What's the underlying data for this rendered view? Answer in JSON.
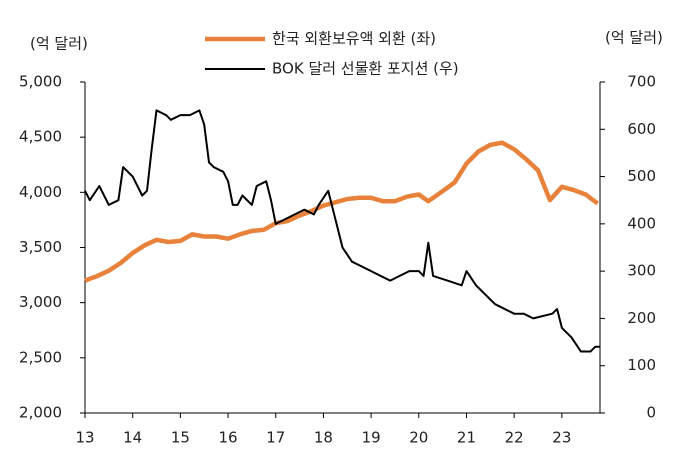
{
  "chart_data": {
    "type": "line",
    "y_label": "(억 달러)",
    "y2_label": "(억 달러)",
    "xlim": [
      13,
      23.8
    ],
    "xticks": [
      13,
      14,
      15,
      16,
      17,
      18,
      19,
      20,
      21,
      22,
      23
    ],
    "ylim": [
      2000,
      5000
    ],
    "yticks": [
      {
        "value": 2000,
        "label": "2,000"
      },
      {
        "value": 2500,
        "label": "2,500"
      },
      {
        "value": 3000,
        "label": "3,000"
      },
      {
        "value": 3500,
        "label": "3,500"
      },
      {
        "value": 4000,
        "label": "4,000"
      },
      {
        "value": 4500,
        "label": "4,500"
      },
      {
        "value": 5000,
        "label": "5,000"
      }
    ],
    "y2lim": [
      0,
      700
    ],
    "y2ticks": [
      0,
      100,
      200,
      300,
      400,
      500,
      600,
      700
    ],
    "series": [
      {
        "name": "한국 외환보유액 외환 (좌)",
        "color": "#e8823a",
        "axis": "y",
        "x": [
          13.0,
          13.25,
          13.5,
          13.75,
          14.0,
          14.25,
          14.5,
          14.75,
          15.0,
          15.25,
          15.5,
          15.75,
          16.0,
          16.25,
          16.5,
          16.75,
          17.0,
          17.25,
          17.5,
          17.75,
          18.0,
          18.25,
          18.5,
          18.75,
          19.0,
          19.25,
          19.5,
          19.75,
          20.0,
          20.2,
          20.5,
          20.75,
          21.0,
          21.25,
          21.5,
          21.75,
          22.0,
          22.25,
          22.5,
          22.75,
          23.0,
          23.25,
          23.5,
          23.75
        ],
        "values": [
          3200,
          3240,
          3290,
          3360,
          3450,
          3520,
          3570,
          3550,
          3560,
          3620,
          3600,
          3600,
          3580,
          3620,
          3650,
          3660,
          3720,
          3740,
          3790,
          3830,
          3880,
          3910,
          3940,
          3950,
          3950,
          3920,
          3920,
          3960,
          3980,
          3920,
          4010,
          4090,
          4260,
          4370,
          4430,
          4450,
          4390,
          4300,
          4200,
          3930,
          4050,
          4020,
          3980,
          3900
        ]
      },
      {
        "name": "BOK 달러 선물환 포지션 (우)",
        "color": "#000000",
        "axis": "y2",
        "x": [
          13.0,
          13.1,
          13.3,
          13.5,
          13.7,
          13.8,
          14.0,
          14.2,
          14.3,
          14.4,
          14.5,
          14.7,
          14.8,
          15.0,
          15.2,
          15.4,
          15.5,
          15.6,
          15.7,
          15.9,
          16.0,
          16.1,
          16.2,
          16.3,
          16.5,
          16.6,
          16.8,
          16.9,
          17.0,
          17.2,
          17.4,
          17.6,
          17.8,
          17.9,
          18.1,
          18.2,
          18.4,
          18.6,
          18.8,
          19.0,
          19.2,
          19.4,
          19.6,
          19.8,
          20.0,
          20.1,
          20.2,
          20.3,
          20.6,
          20.9,
          21.0,
          21.2,
          21.4,
          21.6,
          22.0,
          22.2,
          22.4,
          22.8,
          22.9,
          23.0,
          23.2,
          23.4,
          23.6,
          23.7,
          23.8
        ],
        "values": [
          470,
          450,
          480,
          440,
          450,
          520,
          500,
          460,
          470,
          560,
          640,
          630,
          620,
          630,
          630,
          640,
          610,
          530,
          520,
          510,
          490,
          440,
          440,
          460,
          440,
          480,
          490,
          450,
          400,
          410,
          420,
          430,
          420,
          440,
          470,
          430,
          350,
          320,
          310,
          300,
          290,
          280,
          290,
          300,
          300,
          290,
          360,
          290,
          280,
          270,
          300,
          270,
          250,
          230,
          210,
          210,
          200,
          210,
          220,
          180,
          160,
          130,
          130,
          140,
          140
        ]
      }
    ]
  }
}
